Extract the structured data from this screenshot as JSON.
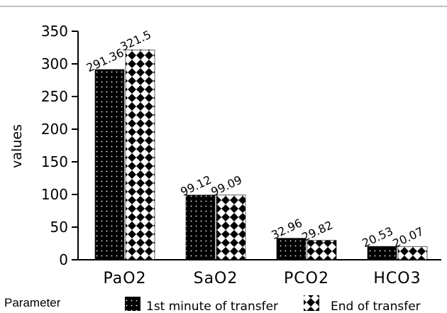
{
  "chart_data": {
    "type": "bar",
    "categories": [
      "PaO2",
      "SaO2",
      "PCO2",
      "HCO3"
    ],
    "series": [
      {
        "name": "1st minute of transfer",
        "values": [
          291.36,
          99.12,
          32.96,
          20.53
        ],
        "data_labels": [
          "291.36",
          "99.12",
          "32.96",
          "20.53"
        ],
        "pattern": "dots"
      },
      {
        "name": "End of transfer",
        "values": [
          321.5,
          99.09,
          29.82,
          20.07
        ],
        "data_labels": [
          "321.5",
          "99.09",
          "29.82",
          "20.07"
        ],
        "pattern": "diamonds"
      }
    ],
    "title": "",
    "xlabel": "Parameter",
    "ylabel": "values",
    "ylim": [
      0,
      350
    ],
    "yticks": [
      "0",
      "50",
      "100",
      "150",
      "200",
      "250",
      "300",
      "350"
    ],
    "grid": false,
    "legend_position": "bottom",
    "colors": {
      "bar_fill": "#000000",
      "pattern_fill": "#ffffff",
      "axis": "#000000",
      "top_rule": "#808080"
    }
  }
}
